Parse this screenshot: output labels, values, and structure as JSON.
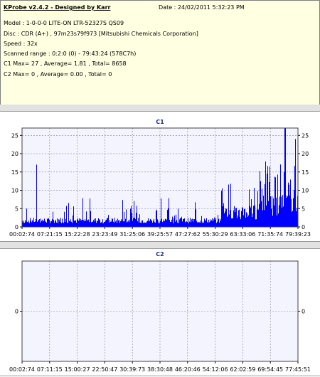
{
  "info": {
    "title": "KProbe v2.4.2 - Designed by Karr",
    "date": "Date : 24/02/2011 5:32:23 PM",
    "model": "Model : 1-0-0-0 LITE-ON LTR-52327S      QS09",
    "disc": "Disc : CDR (A+) , 97m23s79f973 [Mitsubishi Chemicals Corporation]",
    "speed": "Speed : 32x",
    "scanned": "Scanned range : 0:2:0 (0) - 79:43:24 (578C7h)",
    "c1": "C1 Max= 27 , Average= 1.81 , Total= 8658",
    "c2": "C2 Max= 0 , Average= 0.00 , Total= 0"
  },
  "colors": {
    "bar": "#0000ff",
    "plot_bg": "#f4f4ff",
    "grid": "#8080a0",
    "title": "#1a2a8a"
  },
  "chart_data": [
    {
      "type": "bar",
      "title": "C1",
      "ylim": [
        0,
        27
      ],
      "y_ticks": [
        "0",
        "5",
        "10",
        "15",
        "20",
        "25"
      ],
      "x_tick_labels": [
        "00:02:74",
        "07:21:15",
        "15:22:28",
        "23:23:49",
        "31:25:06",
        "39:25:57",
        "47:27:62",
        "55:30:29",
        "63:33:06",
        "71:35:74",
        "79:39:23"
      ],
      "grid": true,
      "max": 27,
      "average": 1.81,
      "total": 8658
    },
    {
      "type": "bar",
      "title": "C2",
      "ylim": [
        -1,
        1
      ],
      "y_ticks": [
        "0"
      ],
      "x_tick_labels": [
        "00:02:74",
        "07:11:15",
        "15:00:27",
        "22:50:47",
        "30:39:73",
        "38:30:48",
        "46:20:46",
        "54:12:06",
        "62:02:59",
        "69:54:45",
        "77:45:51"
      ],
      "grid": true,
      "max": 0,
      "average": 0.0,
      "total": 0
    }
  ]
}
